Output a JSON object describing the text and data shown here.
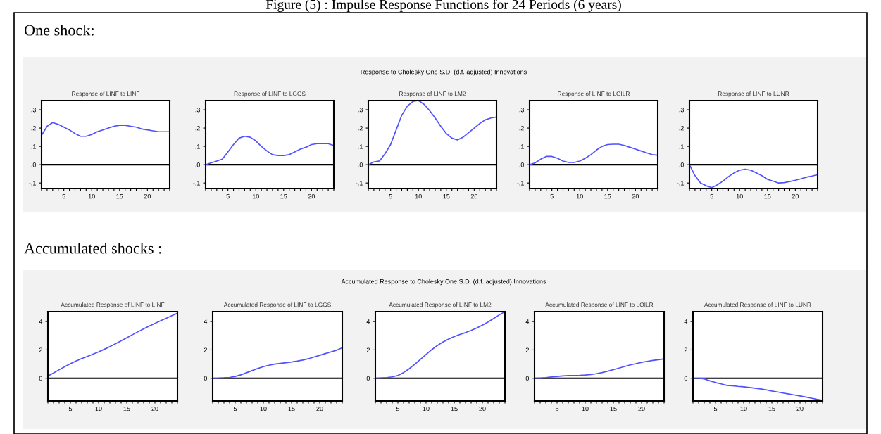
{
  "chart_data": [
    {
      "type": "line",
      "title": "Response of LINF to LINF",
      "annotations": [
        "Figure (5) : Impulse Response Functions for 24 Periods (6 years)",
        "One shock:",
        "Response to Cholesky One S.D. (d.f. adjusted) Innovations"
      ],
      "x": [
        1,
        2,
        3,
        4,
        5,
        6,
        7,
        8,
        9,
        10,
        11,
        12,
        13,
        14,
        15,
        16,
        17,
        18,
        19,
        20,
        21,
        22,
        23,
        24
      ],
      "xlim": [
        1,
        24
      ],
      "xticks": [
        {
          "value": 1,
          "label": null
        },
        {
          "value": 2,
          "label": null
        },
        {
          "value": 3,
          "label": null
        },
        {
          "value": 4,
          "label": null
        },
        5,
        {
          "value": 6,
          "label": null
        },
        {
          "value": 7,
          "label": null
        },
        {
          "value": 8,
          "label": null
        },
        {
          "value": 9,
          "label": null
        },
        10,
        {
          "value": 11,
          "label": null
        },
        {
          "value": 12,
          "label": null
        },
        {
          "value": 13,
          "label": null
        },
        {
          "value": 14,
          "label": null
        },
        15,
        {
          "value": 16,
          "label": null
        },
        {
          "value": 17,
          "label": null
        },
        {
          "value": 18,
          "label": null
        },
        {
          "value": 19,
          "label": null
        },
        20,
        {
          "value": 21,
          "label": null
        },
        {
          "value": 22,
          "label": null
        },
        {
          "value": 23,
          "label": null
        },
        {
          "value": 24,
          "label": null
        }
      ],
      "ylim": [
        -0.13,
        0.35
      ],
      "yticks": [
        {
          "value": -0.1,
          "label": "-.1"
        },
        {
          "value": 0,
          "label": ".0"
        },
        {
          "value": 0.1,
          "label": ".1"
        },
        {
          "value": 0.2,
          "label": ".2"
        },
        {
          "value": 0.3,
          "label": ".3"
        }
      ],
      "ref_lines": [
        {
          "axis": "y",
          "value": 0,
          "color": "#000000"
        }
      ],
      "series": [
        {
          "color": "#5050ff",
          "values": [
            0.16,
            0.21,
            0.23,
            0.22,
            0.205,
            0.19,
            0.17,
            0.155,
            0.155,
            0.165,
            0.18,
            0.19,
            0.2,
            0.21,
            0.215,
            0.215,
            0.21,
            0.205,
            0.195,
            0.19,
            0.185,
            0.18,
            0.18,
            0.18
          ]
        }
      ]
    },
    {
      "type": "line",
      "title": "Response of LINF to LGGS",
      "x": [
        1,
        2,
        3,
        4,
        5,
        6,
        7,
        8,
        9,
        10,
        11,
        12,
        13,
        14,
        15,
        16,
        17,
        18,
        19,
        20,
        21,
        22,
        23,
        24
      ],
      "xlim": [
        1,
        24
      ],
      "xticks": [
        {
          "value": 1,
          "label": null
        },
        {
          "value": 2,
          "label": null
        },
        {
          "value": 3,
          "label": null
        },
        {
          "value": 4,
          "label": null
        },
        5,
        {
          "value": 6,
          "label": null
        },
        {
          "value": 7,
          "label": null
        },
        {
          "value": 8,
          "label": null
        },
        {
          "value": 9,
          "label": null
        },
        10,
        {
          "value": 11,
          "label": null
        },
        {
          "value": 12,
          "label": null
        },
        {
          "value": 13,
          "label": null
        },
        {
          "value": 14,
          "label": null
        },
        15,
        {
          "value": 16,
          "label": null
        },
        {
          "value": 17,
          "label": null
        },
        {
          "value": 18,
          "label": null
        },
        {
          "value": 19,
          "label": null
        },
        20,
        {
          "value": 21,
          "label": null
        },
        {
          "value": 22,
          "label": null
        },
        {
          "value": 23,
          "label": null
        },
        {
          "value": 24,
          "label": null
        }
      ],
      "ylim": [
        -0.13,
        0.35
      ],
      "yticks": [
        {
          "value": -0.1,
          "label": "-.1"
        },
        {
          "value": 0,
          "label": ".0"
        },
        {
          "value": 0.1,
          "label": ".1"
        },
        {
          "value": 0.2,
          "label": ".2"
        },
        {
          "value": 0.3,
          "label": ".3"
        }
      ],
      "ref_lines": [
        {
          "axis": "y",
          "value": 0,
          "color": "#000000"
        }
      ],
      "series": [
        {
          "color": "#5050ff",
          "values": [
            0.0,
            0.01,
            0.02,
            0.03,
            0.07,
            0.11,
            0.145,
            0.155,
            0.15,
            0.13,
            0.1,
            0.075,
            0.055,
            0.05,
            0.05,
            0.055,
            0.07,
            0.085,
            0.095,
            0.11,
            0.115,
            0.115,
            0.115,
            0.105
          ]
        }
      ]
    },
    {
      "type": "line",
      "title": "Response of LINF to LM2",
      "x": [
        1,
        2,
        3,
        4,
        5,
        6,
        7,
        8,
        9,
        10,
        11,
        12,
        13,
        14,
        15,
        16,
        17,
        18,
        19,
        20,
        21,
        22,
        23,
        24
      ],
      "xlim": [
        1,
        24
      ],
      "xticks": [
        {
          "value": 1,
          "label": null
        },
        {
          "value": 2,
          "label": null
        },
        {
          "value": 3,
          "label": null
        },
        {
          "value": 4,
          "label": null
        },
        5,
        {
          "value": 6,
          "label": null
        },
        {
          "value": 7,
          "label": null
        },
        {
          "value": 8,
          "label": null
        },
        {
          "value": 9,
          "label": null
        },
        10,
        {
          "value": 11,
          "label": null
        },
        {
          "value": 12,
          "label": null
        },
        {
          "value": 13,
          "label": null
        },
        {
          "value": 14,
          "label": null
        },
        15,
        {
          "value": 16,
          "label": null
        },
        {
          "value": 17,
          "label": null
        },
        {
          "value": 18,
          "label": null
        },
        {
          "value": 19,
          "label": null
        },
        20,
        {
          "value": 21,
          "label": null
        },
        {
          "value": 22,
          "label": null
        },
        {
          "value": 23,
          "label": null
        },
        {
          "value": 24,
          "label": null
        }
      ],
      "ylim": [
        -0.13,
        0.35
      ],
      "yticks": [
        {
          "value": -0.1,
          "label": "-.1"
        },
        {
          "value": 0,
          "label": ".0"
        },
        {
          "value": 0.1,
          "label": ".1"
        },
        {
          "value": 0.2,
          "label": ".2"
        },
        {
          "value": 0.3,
          "label": ".3"
        }
      ],
      "ref_lines": [
        {
          "axis": "y",
          "value": 0,
          "color": "#000000"
        }
      ],
      "series": [
        {
          "color": "#5050ff",
          "values": [
            0.0,
            0.015,
            0.02,
            0.06,
            0.11,
            0.19,
            0.27,
            0.32,
            0.345,
            0.35,
            0.33,
            0.295,
            0.255,
            0.21,
            0.17,
            0.145,
            0.135,
            0.15,
            0.175,
            0.2,
            0.225,
            0.245,
            0.255,
            0.26
          ]
        }
      ]
    },
    {
      "type": "line",
      "title": "Response of LINF to LOILR",
      "x": [
        1,
        2,
        3,
        4,
        5,
        6,
        7,
        8,
        9,
        10,
        11,
        12,
        13,
        14,
        15,
        16,
        17,
        18,
        19,
        20,
        21,
        22,
        23,
        24
      ],
      "xlim": [
        1,
        24
      ],
      "xticks": [
        {
          "value": 1,
          "label": null
        },
        {
          "value": 2,
          "label": null
        },
        {
          "value": 3,
          "label": null
        },
        {
          "value": 4,
          "label": null
        },
        5,
        {
          "value": 6,
          "label": null
        },
        {
          "value": 7,
          "label": null
        },
        {
          "value": 8,
          "label": null
        },
        {
          "value": 9,
          "label": null
        },
        10,
        {
          "value": 11,
          "label": null
        },
        {
          "value": 12,
          "label": null
        },
        {
          "value": 13,
          "label": null
        },
        {
          "value": 14,
          "label": null
        },
        15,
        {
          "value": 16,
          "label": null
        },
        {
          "value": 17,
          "label": null
        },
        {
          "value": 18,
          "label": null
        },
        {
          "value": 19,
          "label": null
        },
        20,
        {
          "value": 21,
          "label": null
        },
        {
          "value": 22,
          "label": null
        },
        {
          "value": 23,
          "label": null
        },
        {
          "value": 24,
          "label": null
        }
      ],
      "ylim": [
        -0.13,
        0.35
      ],
      "yticks": [
        {
          "value": -0.1,
          "label": "-.1"
        },
        {
          "value": 0,
          "label": ".0"
        },
        {
          "value": 0.1,
          "label": ".1"
        },
        {
          "value": 0.2,
          "label": ".2"
        },
        {
          "value": 0.3,
          "label": ".3"
        }
      ],
      "ref_lines": [
        {
          "axis": "y",
          "value": 0,
          "color": "#000000"
        }
      ],
      "series": [
        {
          "color": "#5050ff",
          "values": [
            0.0,
            0.01,
            0.03,
            0.045,
            0.045,
            0.035,
            0.02,
            0.012,
            0.012,
            0.02,
            0.035,
            0.055,
            0.08,
            0.1,
            0.11,
            0.112,
            0.112,
            0.105,
            0.095,
            0.085,
            0.075,
            0.065,
            0.055,
            0.052
          ]
        }
      ]
    },
    {
      "type": "line",
      "title": "Response of LINF to LUNR",
      "x": [
        1,
        2,
        3,
        4,
        5,
        6,
        7,
        8,
        9,
        10,
        11,
        12,
        13,
        14,
        15,
        16,
        17,
        18,
        19,
        20,
        21,
        22,
        23,
        24
      ],
      "xlim": [
        1,
        24
      ],
      "xticks": [
        {
          "value": 1,
          "label": null
        },
        {
          "value": 2,
          "label": null
        },
        {
          "value": 3,
          "label": null
        },
        {
          "value": 4,
          "label": null
        },
        5,
        {
          "value": 6,
          "label": null
        },
        {
          "value": 7,
          "label": null
        },
        {
          "value": 8,
          "label": null
        },
        {
          "value": 9,
          "label": null
        },
        10,
        {
          "value": 11,
          "label": null
        },
        {
          "value": 12,
          "label": null
        },
        {
          "value": 13,
          "label": null
        },
        {
          "value": 14,
          "label": null
        },
        15,
        {
          "value": 16,
          "label": null
        },
        {
          "value": 17,
          "label": null
        },
        {
          "value": 18,
          "label": null
        },
        {
          "value": 19,
          "label": null
        },
        20,
        {
          "value": 21,
          "label": null
        },
        {
          "value": 22,
          "label": null
        },
        {
          "value": 23,
          "label": null
        },
        {
          "value": 24,
          "label": null
        }
      ],
      "ylim": [
        -0.13,
        0.35
      ],
      "yticks": [
        {
          "value": -0.1,
          "label": "-.1"
        },
        {
          "value": 0,
          "label": ".0"
        },
        {
          "value": 0.1,
          "label": ".1"
        },
        {
          "value": 0.2,
          "label": ".2"
        },
        {
          "value": 0.3,
          "label": ".3"
        }
      ],
      "ref_lines": [
        {
          "axis": "y",
          "value": 0,
          "color": "#000000"
        }
      ],
      "series": [
        {
          "color": "#5050ff",
          "values": [
            0.0,
            -0.06,
            -0.1,
            -0.115,
            -0.125,
            -0.11,
            -0.09,
            -0.065,
            -0.045,
            -0.03,
            -0.025,
            -0.03,
            -0.045,
            -0.06,
            -0.08,
            -0.09,
            -0.1,
            -0.098,
            -0.092,
            -0.085,
            -0.077,
            -0.068,
            -0.062,
            -0.055
          ]
        }
      ]
    },
    {
      "type": "line",
      "title": "Accumulated Response of LINF to LINF",
      "annotations": [
        "Accumulated shocks :",
        "Accumulated Response to Cholesky One S.D. (d.f. adjusted) Innovations"
      ],
      "x": [
        1,
        2,
        3,
        4,
        5,
        6,
        7,
        8,
        9,
        10,
        11,
        12,
        13,
        14,
        15,
        16,
        17,
        18,
        19,
        20,
        21,
        22,
        23,
        24
      ],
      "xlim": [
        1,
        24
      ],
      "xticks": [
        {
          "value": 1,
          "label": null
        },
        {
          "value": 2,
          "label": null
        },
        {
          "value": 3,
          "label": null
        },
        {
          "value": 4,
          "label": null
        },
        5,
        {
          "value": 6,
          "label": null
        },
        {
          "value": 7,
          "label": null
        },
        {
          "value": 8,
          "label": null
        },
        {
          "value": 9,
          "label": null
        },
        10,
        {
          "value": 11,
          "label": null
        },
        {
          "value": 12,
          "label": null
        },
        {
          "value": 13,
          "label": null
        },
        {
          "value": 14,
          "label": null
        },
        15,
        {
          "value": 16,
          "label": null
        },
        {
          "value": 17,
          "label": null
        },
        {
          "value": 18,
          "label": null
        },
        {
          "value": 19,
          "label": null
        },
        20,
        {
          "value": 21,
          "label": null
        },
        {
          "value": 22,
          "label": null
        },
        {
          "value": 23,
          "label": null
        },
        {
          "value": 24,
          "label": null
        }
      ],
      "ylim": [
        -1.6,
        4.7
      ],
      "yticks": [
        0,
        2,
        4
      ],
      "ref_lines": [
        {
          "axis": "y",
          "value": 0,
          "color": "#000000"
        }
      ],
      "series": [
        {
          "color": "#5050ff",
          "values": [
            0.16,
            0.37,
            0.6,
            0.82,
            1.03,
            1.22,
            1.39,
            1.54,
            1.7,
            1.86,
            2.04,
            2.23,
            2.43,
            2.64,
            2.85,
            3.07,
            3.28,
            3.48,
            3.68,
            3.87,
            4.05,
            4.23,
            4.41,
            4.59
          ]
        }
      ]
    },
    {
      "type": "line",
      "title": "Accumulated Response of LINF to LGGS",
      "x": [
        1,
        2,
        3,
        4,
        5,
        6,
        7,
        8,
        9,
        10,
        11,
        12,
        13,
        14,
        15,
        16,
        17,
        18,
        19,
        20,
        21,
        22,
        23,
        24
      ],
      "xlim": [
        1,
        24
      ],
      "xticks": [
        {
          "value": 1,
          "label": null
        },
        {
          "value": 2,
          "label": null
        },
        {
          "value": 3,
          "label": null
        },
        {
          "value": 4,
          "label": null
        },
        5,
        {
          "value": 6,
          "label": null
        },
        {
          "value": 7,
          "label": null
        },
        {
          "value": 8,
          "label": null
        },
        {
          "value": 9,
          "label": null
        },
        10,
        {
          "value": 11,
          "label": null
        },
        {
          "value": 12,
          "label": null
        },
        {
          "value": 13,
          "label": null
        },
        {
          "value": 14,
          "label": null
        },
        15,
        {
          "value": 16,
          "label": null
        },
        {
          "value": 17,
          "label": null
        },
        {
          "value": 18,
          "label": null
        },
        {
          "value": 19,
          "label": null
        },
        20,
        {
          "value": 21,
          "label": null
        },
        {
          "value": 22,
          "label": null
        },
        {
          "value": 23,
          "label": null
        },
        {
          "value": 24,
          "label": null
        }
      ],
      "ylim": [
        -1.6,
        4.7
      ],
      "yticks": [
        0,
        2,
        4
      ],
      "ref_lines": [
        {
          "axis": "y",
          "value": 0,
          "color": "#000000"
        }
      ],
      "series": [
        {
          "color": "#5050ff",
          "values": [
            0.0,
            0.01,
            0.03,
            0.06,
            0.13,
            0.24,
            0.39,
            0.54,
            0.69,
            0.82,
            0.92,
            1.0,
            1.05,
            1.1,
            1.15,
            1.21,
            1.28,
            1.38,
            1.5,
            1.62,
            1.74,
            1.86,
            1.98,
            2.15
          ]
        }
      ]
    },
    {
      "type": "line",
      "title": "Accumulated Response of LINF to LM2",
      "x": [
        1,
        2,
        3,
        4,
        5,
        6,
        7,
        8,
        9,
        10,
        11,
        12,
        13,
        14,
        15,
        16,
        17,
        18,
        19,
        20,
        21,
        22,
        23,
        24
      ],
      "xlim": [
        1,
        24
      ],
      "xticks": [
        {
          "value": 1,
          "label": null
        },
        {
          "value": 2,
          "label": null
        },
        {
          "value": 3,
          "label": null
        },
        {
          "value": 4,
          "label": null
        },
        5,
        {
          "value": 6,
          "label": null
        },
        {
          "value": 7,
          "label": null
        },
        {
          "value": 8,
          "label": null
        },
        {
          "value": 9,
          "label": null
        },
        10,
        {
          "value": 11,
          "label": null
        },
        {
          "value": 12,
          "label": null
        },
        {
          "value": 13,
          "label": null
        },
        {
          "value": 14,
          "label": null
        },
        15,
        {
          "value": 16,
          "label": null
        },
        {
          "value": 17,
          "label": null
        },
        {
          "value": 18,
          "label": null
        },
        {
          "value": 19,
          "label": null
        },
        20,
        {
          "value": 21,
          "label": null
        },
        {
          "value": 22,
          "label": null
        },
        {
          "value": 23,
          "label": null
        },
        {
          "value": 24,
          "label": null
        }
      ],
      "ylim": [
        -1.6,
        4.7
      ],
      "yticks": [
        0,
        2,
        4
      ],
      "ref_lines": [
        {
          "axis": "y",
          "value": 0,
          "color": "#000000"
        }
      ],
      "series": [
        {
          "color": "#5050ff",
          "values": [
            0.0,
            0.02,
            0.04,
            0.1,
            0.2,
            0.4,
            0.67,
            0.99,
            1.33,
            1.68,
            2.01,
            2.31,
            2.56,
            2.77,
            2.94,
            3.09,
            3.22,
            3.37,
            3.55,
            3.75,
            3.97,
            4.22,
            4.47,
            4.7
          ]
        }
      ]
    },
    {
      "type": "line",
      "title": "Accumulated Response of LINF to LOILR",
      "x": [
        1,
        2,
        3,
        4,
        5,
        6,
        7,
        8,
        9,
        10,
        11,
        12,
        13,
        14,
        15,
        16,
        17,
        18,
        19,
        20,
        21,
        22,
        23,
        24
      ],
      "xlim": [
        1,
        24
      ],
      "xticks": [
        {
          "value": 1,
          "label": null
        },
        {
          "value": 2,
          "label": null
        },
        {
          "value": 3,
          "label": null
        },
        {
          "value": 4,
          "label": null
        },
        5,
        {
          "value": 6,
          "label": null
        },
        {
          "value": 7,
          "label": null
        },
        {
          "value": 8,
          "label": null
        },
        {
          "value": 9,
          "label": null
        },
        10,
        {
          "value": 11,
          "label": null
        },
        {
          "value": 12,
          "label": null
        },
        {
          "value": 13,
          "label": null
        },
        {
          "value": 14,
          "label": null
        },
        15,
        {
          "value": 16,
          "label": null
        },
        {
          "value": 17,
          "label": null
        },
        {
          "value": 18,
          "label": null
        },
        {
          "value": 19,
          "label": null
        },
        20,
        {
          "value": 21,
          "label": null
        },
        {
          "value": 22,
          "label": null
        },
        {
          "value": 23,
          "label": null
        },
        {
          "value": 24,
          "label": null
        }
      ],
      "ylim": [
        -1.6,
        4.7
      ],
      "yticks": [
        0,
        2,
        4
      ],
      "ref_lines": [
        {
          "axis": "y",
          "value": 0,
          "color": "#000000"
        }
      ],
      "series": [
        {
          "color": "#5050ff",
          "values": [
            0.0,
            0.01,
            0.04,
            0.09,
            0.13,
            0.17,
            0.19,
            0.2,
            0.21,
            0.23,
            0.26,
            0.32,
            0.4,
            0.5,
            0.61,
            0.72,
            0.83,
            0.94,
            1.03,
            1.12,
            1.19,
            1.26,
            1.31,
            1.37
          ]
        }
      ]
    },
    {
      "type": "line",
      "title": "Accumulated Response of LINF to LUNR",
      "x": [
        1,
        2,
        3,
        4,
        5,
        6,
        7,
        8,
        9,
        10,
        11,
        12,
        13,
        14,
        15,
        16,
        17,
        18,
        19,
        20,
        21,
        22,
        23,
        24
      ],
      "xlim": [
        1,
        24
      ],
      "xticks": [
        {
          "value": 1,
          "label": null
        },
        {
          "value": 2,
          "label": null
        },
        {
          "value": 3,
          "label": null
        },
        {
          "value": 4,
          "label": null
        },
        5,
        {
          "value": 6,
          "label": null
        },
        {
          "value": 7,
          "label": null
        },
        {
          "value": 8,
          "label": null
        },
        {
          "value": 9,
          "label": null
        },
        10,
        {
          "value": 11,
          "label": null
        },
        {
          "value": 12,
          "label": null
        },
        {
          "value": 13,
          "label": null
        },
        {
          "value": 14,
          "label": null
        },
        15,
        {
          "value": 16,
          "label": null
        },
        {
          "value": 17,
          "label": null
        },
        {
          "value": 18,
          "label": null
        },
        {
          "value": 19,
          "label": null
        },
        20,
        {
          "value": 21,
          "label": null
        },
        {
          "value": 22,
          "label": null
        },
        {
          "value": 23,
          "label": null
        },
        {
          "value": 24,
          "label": null
        }
      ],
      "ylim": [
        -1.6,
        4.7
      ],
      "yticks": [
        0,
        2,
        4
      ],
      "ref_lines": [
        {
          "axis": "y",
          "value": 0,
          "color": "#000000"
        }
      ],
      "series": [
        {
          "color": "#5050ff",
          "values": [
            0.0,
            0.0,
            -0.05,
            -0.18,
            -0.3,
            -0.4,
            -0.5,
            -0.53,
            -0.57,
            -0.6,
            -0.65,
            -0.7,
            -0.75,
            -0.82,
            -0.9,
            -0.97,
            -1.04,
            -1.11,
            -1.18,
            -1.25,
            -1.32,
            -1.4,
            -1.48,
            -1.55
          ]
        }
      ]
    }
  ]
}
